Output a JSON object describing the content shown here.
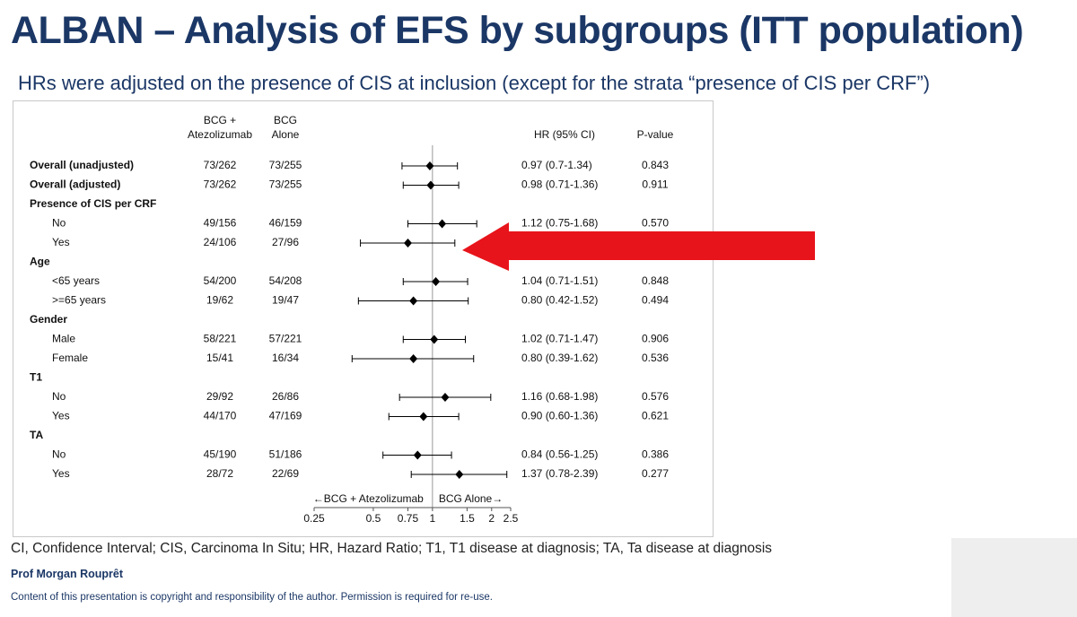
{
  "title": "ALBAN – Analysis of EFS by subgroups (ITT population)",
  "subtitle": "HRs were adjusted on the presence of CIS at inclusion (except for the strata “presence of CIS per CRF”)",
  "footnote": "CI, Confidence Interval; CIS, Carcinoma In Situ; HR, Hazard Ratio; T1, T1 disease at diagnosis; TA, Ta disease at diagnosis",
  "author": "Prof Morgan Rouprêt",
  "copyright": "Content of this presentation is copyright and responsibility of the author. Permission is required for re-use.",
  "chart_data": {
    "type": "forest",
    "column_headers": {
      "arm1": [
        "BCG +",
        "Atezolizumab"
      ],
      "arm2": [
        "BCG",
        "Alone"
      ],
      "hr": "HR (95% CI)",
      "p": "P-value"
    },
    "categories": [
      "Overall (unadjusted)",
      "Overall (adjusted)",
      "Presence of CIS per CRF",
      "No",
      "Yes",
      "Age",
      "<65 years",
      ">=65 years",
      "Gender",
      "Male",
      "Female",
      "T1",
      "No",
      "Yes",
      "TA",
      "No",
      "Yes"
    ],
    "arm1": [
      "73/262",
      "73/262",
      null,
      "49/156",
      "24/106",
      null,
      "54/200",
      "19/62",
      null,
      "58/221",
      "15/41",
      null,
      "29/92",
      "44/170",
      null,
      "45/190",
      "28/72"
    ],
    "arm2": [
      "73/255",
      "73/255",
      null,
      "46/159",
      "27/96",
      null,
      "54/208",
      "19/47",
      null,
      "57/221",
      "16/34",
      null,
      "26/86",
      "47/169",
      null,
      "51/186",
      "22/69"
    ],
    "values": [
      0.97,
      0.98,
      null,
      1.12,
      0.75,
      null,
      1.04,
      0.8,
      null,
      1.02,
      0.8,
      null,
      1.16,
      0.9,
      null,
      0.84,
      1.37
    ],
    "ci_low": [
      0.7,
      0.71,
      null,
      0.75,
      0.43,
      null,
      0.71,
      0.42,
      null,
      0.71,
      0.39,
      null,
      0.68,
      0.6,
      null,
      0.56,
      0.78
    ],
    "ci_high": [
      1.34,
      1.36,
      null,
      1.68,
      1.3,
      null,
      1.51,
      1.52,
      null,
      1.47,
      1.62,
      null,
      1.98,
      1.36,
      null,
      1.25,
      2.39
    ],
    "value_labels": [
      "0.97 (0.7-1.34)",
      "0.98 (0.71-1.36)",
      null,
      "1.12 (0.75-1.68)",
      null,
      null,
      "1.04 (0.71-1.51)",
      "0.80 (0.42-1.52)",
      null,
      "1.02 (0.71-1.47)",
      "0.80 (0.39-1.62)",
      null,
      "1.16 (0.68-1.98)",
      "0.90 (0.60-1.36)",
      null,
      "0.84 (0.56-1.25)",
      "1.37 (0.78-2.39)"
    ],
    "p_values": [
      "0.843",
      "0.911",
      null,
      "0.570",
      null,
      null,
      "0.848",
      "0.494",
      null,
      "0.906",
      "0.536",
      null,
      "0.576",
      "0.621",
      null,
      "0.386",
      "0.277"
    ],
    "annotations": {
      "left": "←BCG + Atezolizumab",
      "right": "BCG Alone→"
    },
    "xlim": [
      0.25,
      2.5
    ],
    "xticks": [
      0.25,
      0.5,
      0.75,
      1,
      1.5,
      2,
      2.5
    ],
    "log_scale": true,
    "reference": 1,
    "color": "#000000"
  }
}
